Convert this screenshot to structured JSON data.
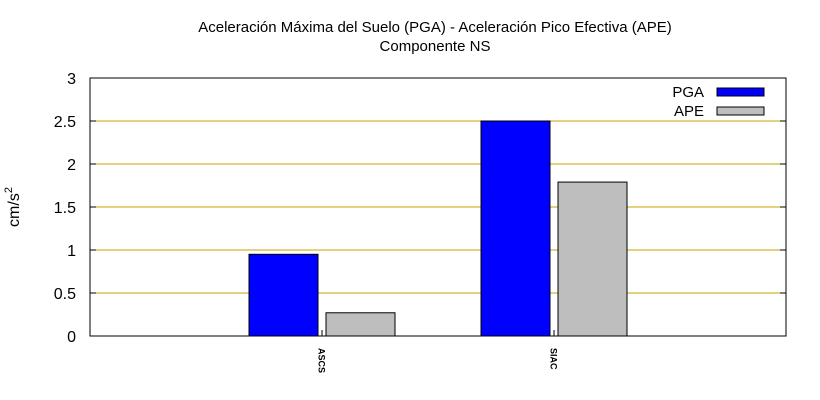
{
  "chart_data": {
    "type": "bar",
    "title": "Aceleración Máxima del Suelo (PGA) -  Aceleración Pico Efectiva (APE)",
    "subtitle": "Componente NS",
    "ylabel": "cm/s",
    "ylabel_superscript": "2",
    "xlabel": "",
    "ylim": [
      0,
      3
    ],
    "yticks": [
      "0",
      "0.5",
      "1",
      "1.5",
      "2",
      "2.5",
      "3"
    ],
    "categories": [
      "ASCS",
      "SIAC"
    ],
    "series": [
      {
        "name": "PGA",
        "values": [
          0.95,
          2.5
        ],
        "color": "#0000ff"
      },
      {
        "name": "APE",
        "values": [
          0.27,
          1.79
        ],
        "color": "#bebebe"
      }
    ],
    "grid": true,
    "grid_color": "#c8a000",
    "legend": "top-right"
  }
}
